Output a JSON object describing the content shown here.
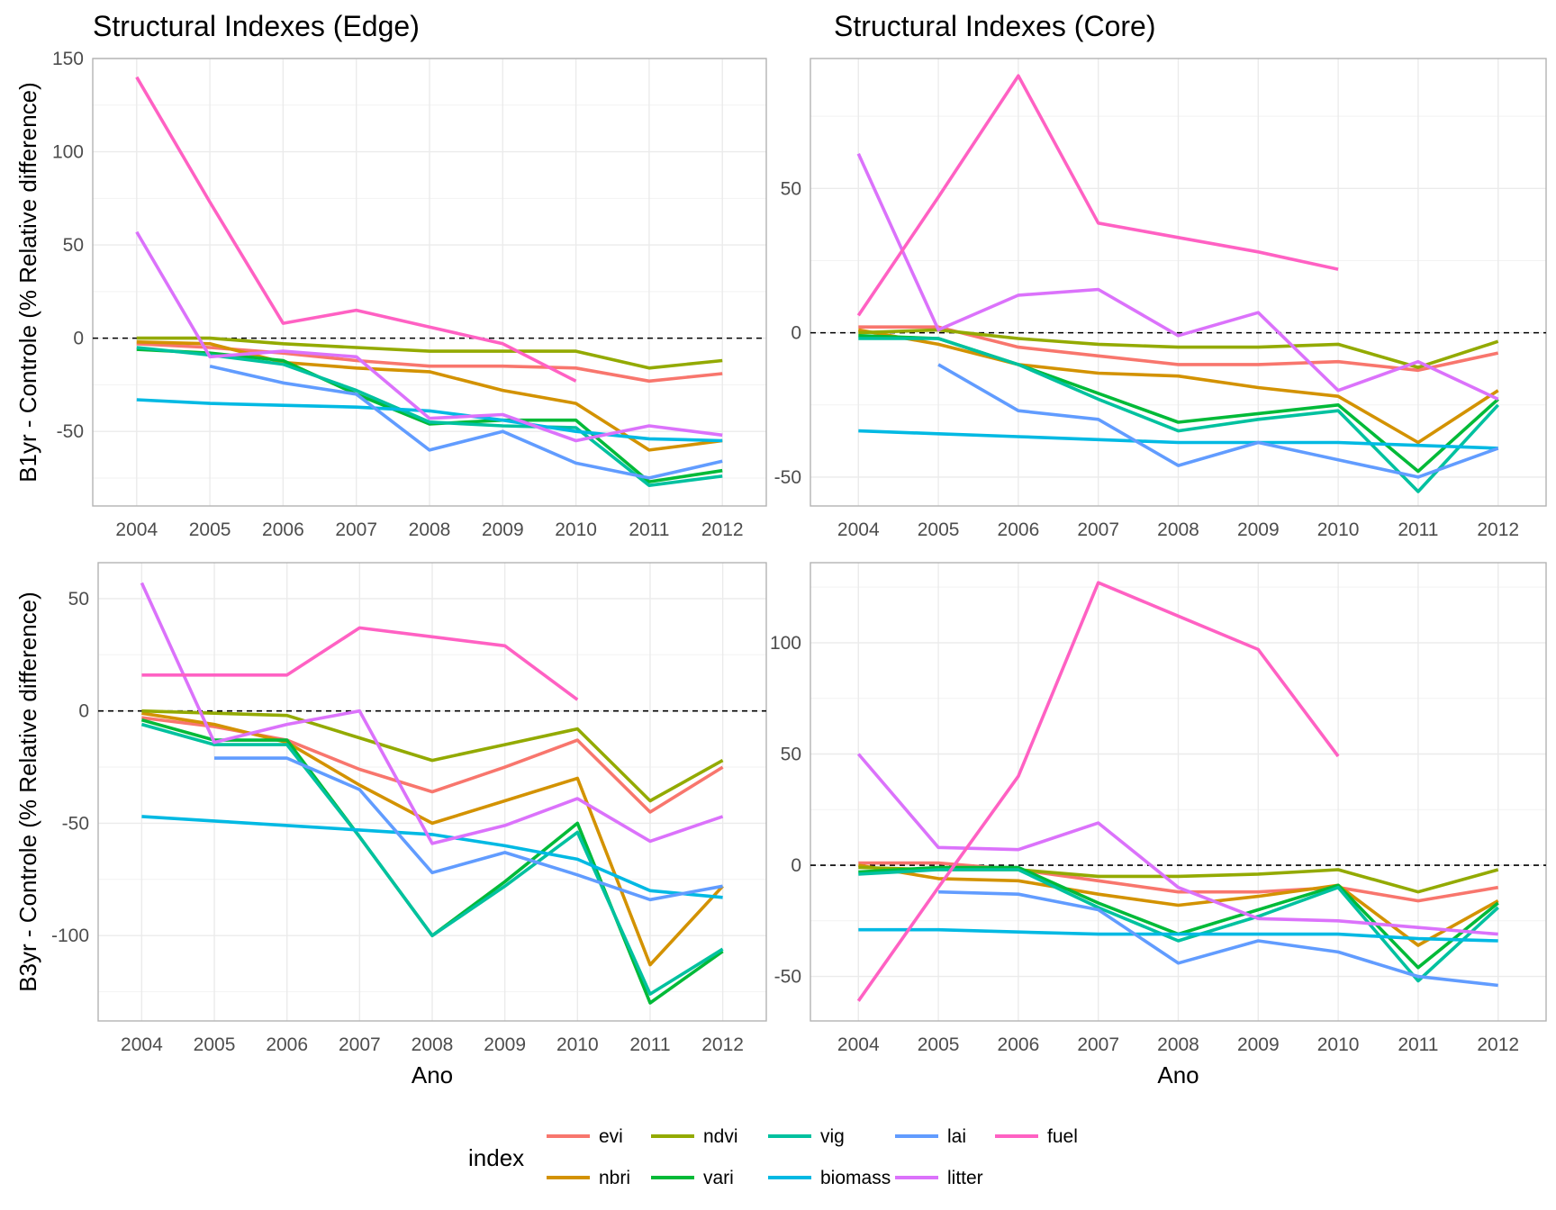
{
  "figure": {
    "xlabel": "Ano",
    "legend_title": "index",
    "legend_position": "bottom"
  },
  "legend": [
    {
      "name": "evi",
      "color": "#F8766D"
    },
    {
      "name": "nbri",
      "color": "#D39200"
    },
    {
      "name": "ndvi",
      "color": "#93AA00"
    },
    {
      "name": "vari",
      "color": "#00BA38"
    },
    {
      "name": "vig",
      "color": "#00C19F"
    },
    {
      "name": "biomass",
      "color": "#00B9E3"
    },
    {
      "name": "lai",
      "color": "#619CFF"
    },
    {
      "name": "litter",
      "color": "#DB72FB"
    },
    {
      "name": "fuel",
      "color": "#FF61C3"
    }
  ],
  "chart_data": [
    {
      "type": "line",
      "title": "Structural Indexes (Edge)",
      "ylabel": "B1yr - Controle (% Relative difference)",
      "xlabel": "",
      "x": [
        2004,
        2005,
        2006,
        2007,
        2008,
        2009,
        2010,
        2011,
        2012
      ],
      "ylim": [
        -90,
        150
      ],
      "yticks": [
        -50,
        0,
        50,
        100,
        150
      ],
      "reference_line": 0,
      "grid": true,
      "series": [
        {
          "name": "evi",
          "values": [
            -3,
            -5,
            -8,
            -12,
            -15,
            -15,
            -16,
            -23,
            -19
          ]
        },
        {
          "name": "nbri",
          "values": [
            -2,
            -3,
            -13,
            -16,
            -18,
            -28,
            -35,
            -60,
            -55
          ]
        },
        {
          "name": "ndvi",
          "values": [
            0,
            0,
            -3,
            -5,
            -7,
            -7,
            -7,
            -16,
            -12
          ]
        },
        {
          "name": "vari",
          "values": [
            -6,
            -8,
            -12,
            -30,
            -46,
            -44,
            -44,
            -77,
            -71
          ]
        },
        {
          "name": "vig",
          "values": [
            -5,
            -9,
            -14,
            -28,
            -45,
            -47,
            -48,
            -79,
            -74
          ]
        },
        {
          "name": "biomass",
          "values": [
            -33,
            -35,
            -36,
            -37,
            -39,
            -44,
            -50,
            -54,
            -55
          ]
        },
        {
          "name": "lai",
          "values": [
            null,
            -15,
            -24,
            -30,
            -60,
            -50,
            -67,
            -75,
            -66
          ]
        },
        {
          "name": "litter",
          "values": [
            57,
            -10,
            -7,
            -10,
            -43,
            -41,
            -55,
            -47,
            -52
          ]
        },
        {
          "name": "fuel",
          "values": [
            140,
            73,
            8,
            15,
            6,
            -3,
            -23,
            null,
            null
          ]
        }
      ]
    },
    {
      "type": "line",
      "title": "Structural Indexes (Core)",
      "ylabel": "",
      "xlabel": "",
      "x": [
        2004,
        2005,
        2006,
        2007,
        2008,
        2009,
        2010,
        2011,
        2012
      ],
      "ylim": [
        -60,
        95
      ],
      "yticks": [
        -50,
        0,
        50
      ],
      "reference_line": 0,
      "grid": true,
      "series": [
        {
          "name": "evi",
          "values": [
            2,
            2,
            -5,
            -8,
            -11,
            -11,
            -10,
            -13,
            -7
          ]
        },
        {
          "name": "nbri",
          "values": [
            1,
            -4,
            -11,
            -14,
            -15,
            -19,
            -22,
            -38,
            -20
          ]
        },
        {
          "name": "ndvi",
          "values": [
            0,
            1,
            -2,
            -4,
            -5,
            -5,
            -4,
            -12,
            -3
          ]
        },
        {
          "name": "vari",
          "values": [
            -1,
            -2,
            -11,
            -21,
            -31,
            -28,
            -25,
            -48,
            -23
          ]
        },
        {
          "name": "vig",
          "values": [
            -2,
            -2,
            -11,
            -23,
            -34,
            -30,
            -27,
            -55,
            -25
          ]
        },
        {
          "name": "biomass",
          "values": [
            -34,
            -35,
            -36,
            -37,
            -38,
            -38,
            -38,
            -39,
            -40
          ]
        },
        {
          "name": "lai",
          "values": [
            null,
            -11,
            -27,
            -30,
            -46,
            -38,
            -44,
            -50,
            -40
          ]
        },
        {
          "name": "litter",
          "values": [
            62,
            1,
            13,
            15,
            -1,
            7,
            -20,
            -10,
            -23
          ]
        },
        {
          "name": "fuel",
          "values": [
            6,
            47,
            89,
            38,
            33,
            28,
            22,
            null,
            null
          ]
        }
      ]
    },
    {
      "type": "line",
      "title": "",
      "ylabel": "B3yr - Controle (% Relative difference)",
      "xlabel": "Ano",
      "x": [
        2004,
        2005,
        2006,
        2007,
        2008,
        2009,
        2010,
        2011,
        2012
      ],
      "ylim": [
        -138,
        66
      ],
      "yticks": [
        -100,
        -50,
        0,
        50
      ],
      "reference_line": 0,
      "grid": true,
      "series": [
        {
          "name": "evi",
          "values": [
            -3,
            -7,
            -13,
            -26,
            -36,
            -25,
            -13,
            -45,
            -25
          ]
        },
        {
          "name": "nbri",
          "values": [
            -1,
            -6,
            -14,
            -33,
            -50,
            -40,
            -30,
            -113,
            -78
          ]
        },
        {
          "name": "ndvi",
          "values": [
            0,
            -1,
            -2,
            -12,
            -22,
            -15,
            -8,
            -40,
            -22
          ]
        },
        {
          "name": "vari",
          "values": [
            -4,
            -13,
            -13,
            -56,
            -100,
            -76,
            -50,
            -130,
            -107
          ]
        },
        {
          "name": "vig",
          "values": [
            -6,
            -15,
            -15,
            -56,
            -100,
            -78,
            -54,
            -126,
            -106
          ]
        },
        {
          "name": "biomass",
          "values": [
            -47,
            -49,
            -51,
            -53,
            -55,
            -60,
            -66,
            -80,
            -83
          ]
        },
        {
          "name": "lai",
          "values": [
            null,
            -21,
            -21,
            -35,
            -72,
            -63,
            -73,
            -84,
            -78
          ]
        },
        {
          "name": "litter",
          "values": [
            57,
            -14,
            -6,
            0,
            -59,
            -51,
            -39,
            -58,
            -47
          ]
        },
        {
          "name": "fuel",
          "values": [
            16,
            16,
            16,
            37,
            33,
            29,
            5,
            null,
            null
          ]
        }
      ]
    },
    {
      "type": "line",
      "title": "",
      "ylabel": "",
      "xlabel": "Ano",
      "x": [
        2004,
        2005,
        2006,
        2007,
        2008,
        2009,
        2010,
        2011,
        2012
      ],
      "ylim": [
        -70,
        136
      ],
      "yticks": [
        -50,
        0,
        50,
        100
      ],
      "reference_line": 0,
      "grid": true,
      "series": [
        {
          "name": "evi",
          "values": [
            1,
            1,
            -2,
            -7,
            -12,
            -12,
            -10,
            -16,
            -10
          ]
        },
        {
          "name": "nbri",
          "values": [
            0,
            -6,
            -7,
            -13,
            -18,
            -14,
            -9,
            -36,
            -16
          ]
        },
        {
          "name": "ndvi",
          "values": [
            -1,
            -2,
            -2,
            -5,
            -5,
            -4,
            -2,
            -12,
            -2
          ]
        },
        {
          "name": "vari",
          "values": [
            -3,
            -1,
            -1,
            -17,
            -31,
            -20,
            -9,
            -46,
            -17
          ]
        },
        {
          "name": "vig",
          "values": [
            -4,
            -2,
            -2,
            -19,
            -34,
            -23,
            -10,
            -52,
            -19
          ]
        },
        {
          "name": "biomass",
          "values": [
            -29,
            -29,
            -30,
            -31,
            -31,
            -31,
            -31,
            -33,
            -34
          ]
        },
        {
          "name": "lai",
          "values": [
            null,
            -12,
            -13,
            -20,
            -44,
            -34,
            -39,
            -50,
            -54
          ]
        },
        {
          "name": "litter",
          "values": [
            50,
            8,
            7,
            19,
            -10,
            -24,
            -25,
            -28,
            -31
          ]
        },
        {
          "name": "fuel",
          "values": [
            -61,
            -10,
            40,
            127,
            112,
            97,
            49,
            null,
            null
          ]
        }
      ]
    }
  ]
}
